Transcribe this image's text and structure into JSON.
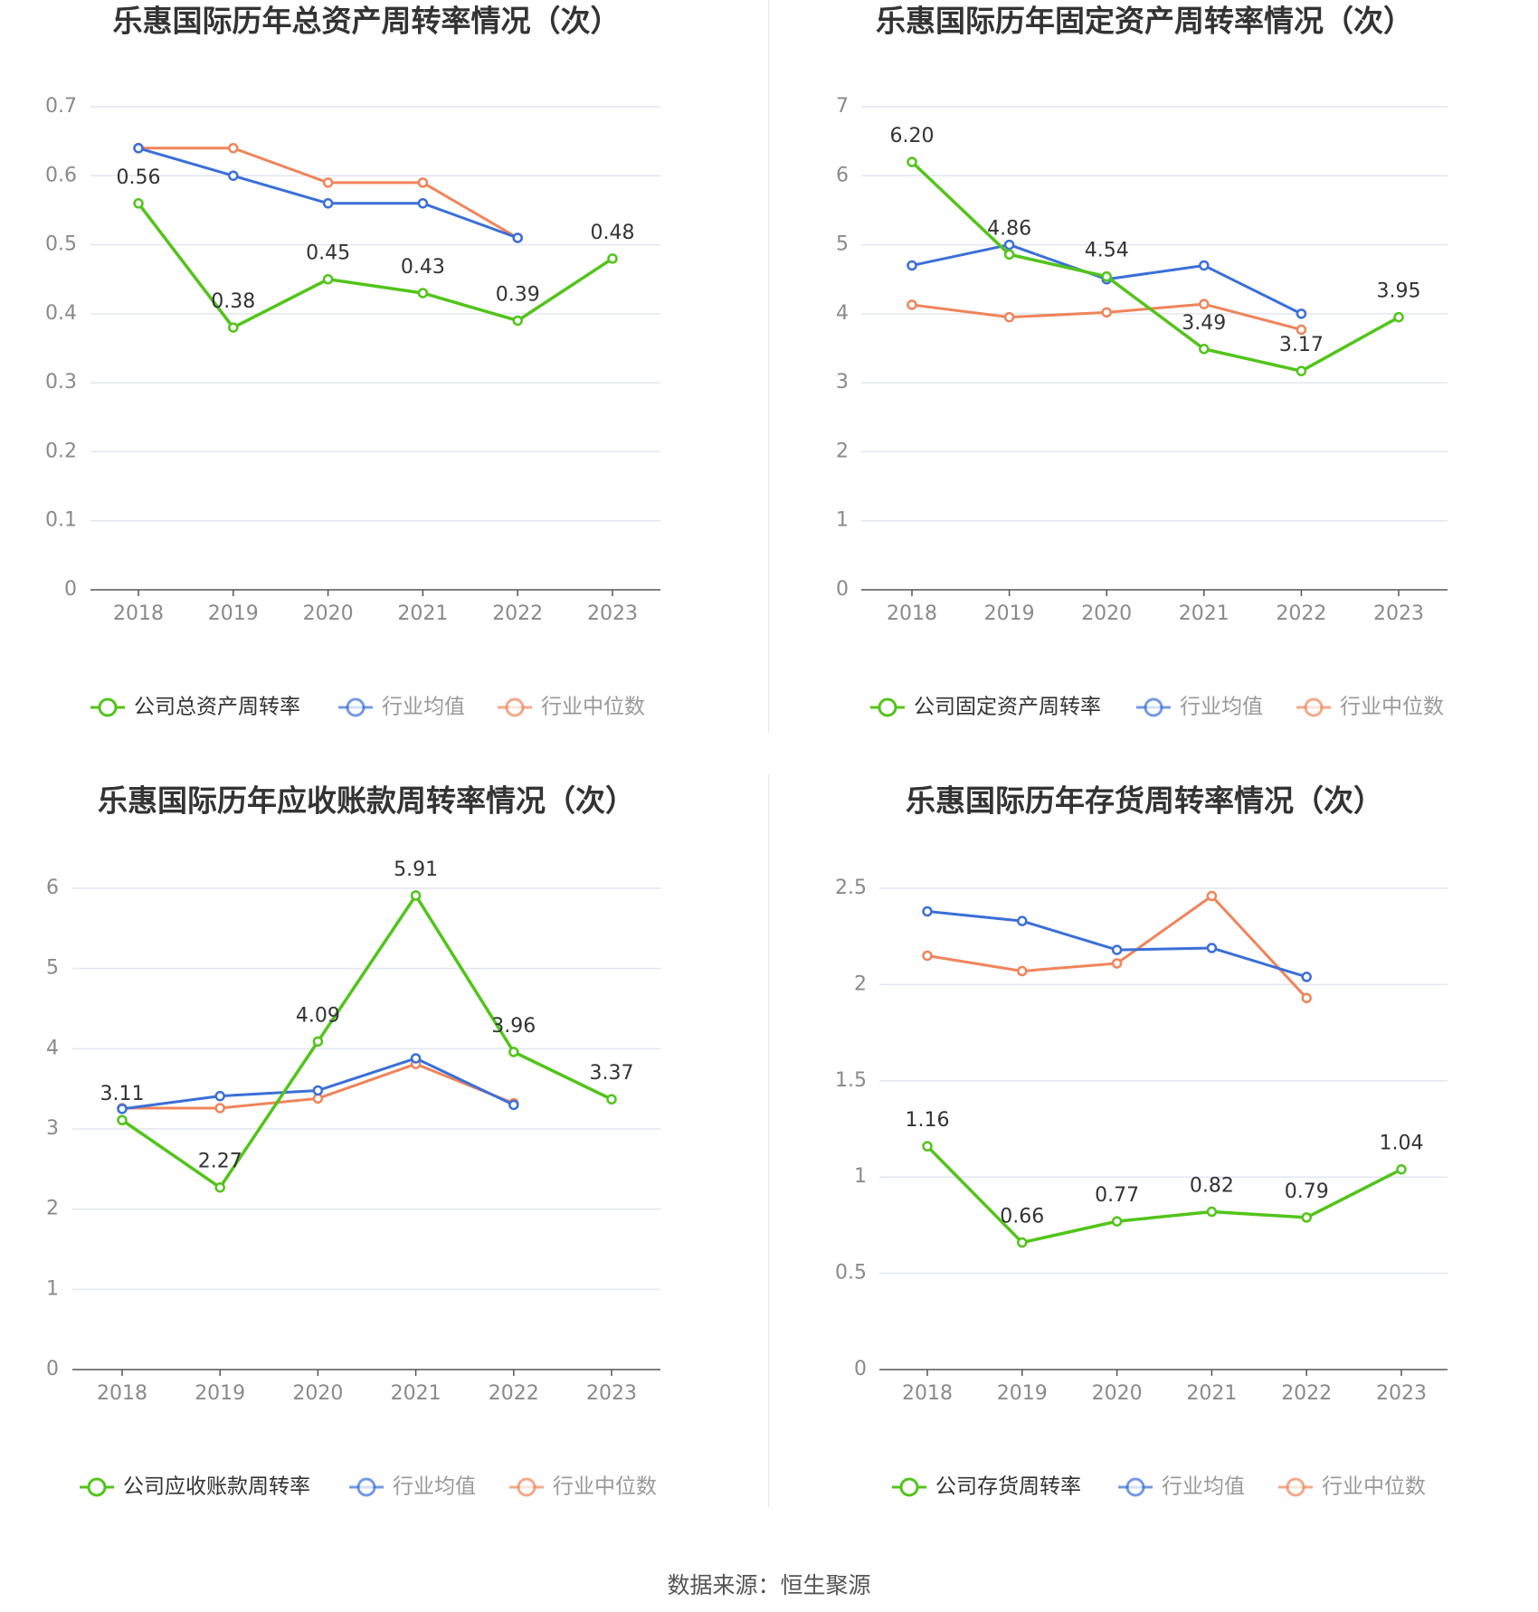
{
  "source_text": "数据来源：恒生聚源",
  "colors": {
    "company": "#52c41a",
    "industry_avg": "#3b6fd8",
    "industry_median": "#f0845a"
  },
  "chart_data": [
    {
      "type": "line",
      "title": "乐惠国际历年总资产周转率情况（次）",
      "categories": [
        "2018",
        "2019",
        "2020",
        "2021",
        "2022",
        "2023"
      ],
      "yticks": [
        "0",
        "0.1",
        "0.2",
        "0.3",
        "0.4",
        "0.5",
        "0.6",
        "0.7"
      ],
      "ylim": [
        0,
        0.7
      ],
      "series": [
        {
          "name": "公司总资产周转率",
          "values": [
            0.56,
            0.38,
            0.45,
            0.43,
            0.39,
            0.48
          ],
          "labels": [
            "0.56",
            "0.38",
            "0.45",
            "0.43",
            "0.39",
            "0.48"
          ]
        },
        {
          "name": "行业均值",
          "values": [
            0.64,
            0.6,
            0.56,
            0.56,
            0.51,
            null
          ]
        },
        {
          "name": "行业中位数",
          "values": [
            0.64,
            0.64,
            0.59,
            0.59,
            0.51,
            null
          ]
        }
      ]
    },
    {
      "type": "line",
      "title": "乐惠国际历年固定资产周转率情况（次）",
      "categories": [
        "2018",
        "2019",
        "2020",
        "2021",
        "2022",
        "2023"
      ],
      "yticks": [
        "0",
        "1",
        "2",
        "3",
        "4",
        "5",
        "6",
        "7"
      ],
      "ylim": [
        0,
        7
      ],
      "series": [
        {
          "name": "公司固定资产周转率",
          "values": [
            6.2,
            4.86,
            4.54,
            3.49,
            3.17,
            3.95
          ],
          "labels": [
            "6.20",
            "4.86",
            "4.54",
            "3.49",
            "3.17",
            "3.95"
          ]
        },
        {
          "name": "行业均值",
          "values": [
            4.7,
            5.0,
            4.5,
            4.7,
            4.0,
            null
          ]
        },
        {
          "name": "行业中位数",
          "values": [
            4.13,
            3.95,
            4.02,
            4.14,
            3.77,
            null
          ]
        }
      ]
    },
    {
      "type": "line",
      "title": "乐惠国际历年应收账款周转率情况（次）",
      "categories": [
        "2018",
        "2019",
        "2020",
        "2021",
        "2022",
        "2023"
      ],
      "yticks": [
        "0",
        "1",
        "2",
        "3",
        "4",
        "5",
        "6"
      ],
      "ylim": [
        0,
        6
      ],
      "series": [
        {
          "name": "公司应收账款周转率",
          "values": [
            3.11,
            2.27,
            4.09,
            5.91,
            3.96,
            3.37
          ],
          "labels": [
            "3.11",
            "2.27",
            "4.09",
            "5.91",
            "3.96",
            "3.37"
          ]
        },
        {
          "name": "行业均值",
          "values": [
            3.25,
            3.41,
            3.48,
            3.88,
            3.3,
            null
          ]
        },
        {
          "name": "行业中位数",
          "values": [
            3.26,
            3.26,
            3.38,
            3.81,
            3.32,
            null
          ]
        }
      ]
    },
    {
      "type": "line",
      "title": "乐惠国际历年存货周转率情况（次）",
      "categories": [
        "2018",
        "2019",
        "2020",
        "2021",
        "2022",
        "2023"
      ],
      "yticks": [
        "0",
        "0.5",
        "1",
        "1.5",
        "2",
        "2.5"
      ],
      "ylim": [
        0,
        2.5
      ],
      "series": [
        {
          "name": "公司存货周转率",
          "values": [
            1.16,
            0.66,
            0.77,
            0.82,
            0.79,
            1.04
          ],
          "labels": [
            "1.16",
            "0.66",
            "0.77",
            "0.82",
            "0.79",
            "1.04"
          ]
        },
        {
          "name": "行业均值",
          "values": [
            2.38,
            2.33,
            2.18,
            2.19,
            2.04,
            null
          ]
        },
        {
          "name": "行业中位数",
          "values": [
            2.15,
            2.07,
            2.11,
            2.46,
            1.93,
            null
          ]
        }
      ]
    }
  ]
}
